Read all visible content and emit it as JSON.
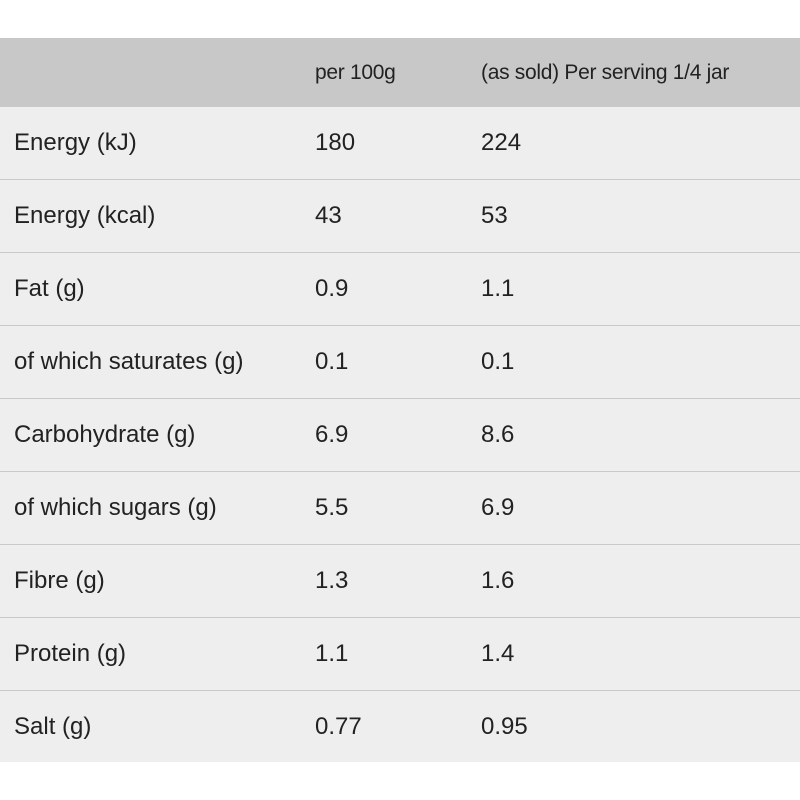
{
  "table": {
    "headers": [
      "",
      "per 100g",
      "(as sold) Per serving 1/4 jar"
    ],
    "rows": [
      [
        "Energy (kJ)",
        "180",
        "224"
      ],
      [
        "Energy (kcal)",
        "43",
        "53"
      ],
      [
        "Fat (g)",
        "0.9",
        "1.1"
      ],
      [
        "of which saturates (g)",
        "0.1",
        "0.1"
      ],
      [
        "Carbohydrate (g)",
        "6.9",
        "8.6"
      ],
      [
        "of which sugars (g)",
        "5.5",
        "6.9"
      ],
      [
        "Fibre (g)",
        "1.3",
        "1.6"
      ],
      [
        "Protein (g)",
        "1.1",
        "1.4"
      ],
      [
        "Salt (g)",
        "0.77",
        "0.95"
      ]
    ]
  },
  "colors": {
    "header_bg": "#c8c8c8",
    "row_bg": "#eeeeee",
    "divider": "#c9c9c9",
    "text": "#222222"
  }
}
